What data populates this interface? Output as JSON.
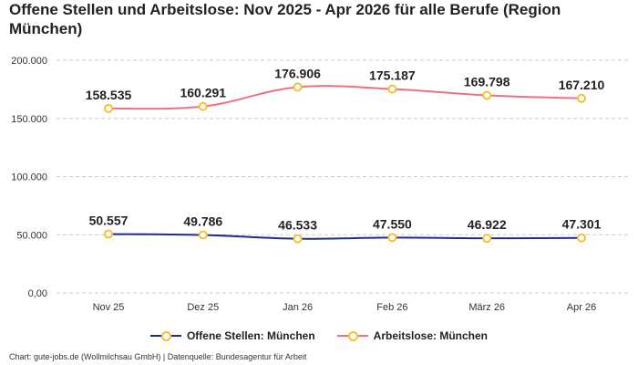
{
  "title": "Offene Stellen und Arbeitslose: Nov 2025 - Apr 2026 für alle Berufe (Region München)",
  "footer": "Chart: gute-jobs.de (Wollmilchsau GmbH) | Datenquelle: Bundesagentur für Arbeit",
  "colors": {
    "offene_stellen": "#1f2d86",
    "arbeitslose": "#f0707f",
    "marker_border": "#f2c232",
    "grid": "#cccccc"
  },
  "chart_data": {
    "type": "line",
    "categories": [
      "Nov 25",
      "Dez 25",
      "Jan 26",
      "Feb 26",
      "März 26",
      "Apr 26"
    ],
    "y_ticks": [
      "0,00",
      "50.000",
      "100.000",
      "150.000",
      "200.000"
    ],
    "ylim": [
      0,
      200000
    ],
    "grid": true,
    "legend_position": "bottom",
    "series": [
      {
        "name": "Offene Stellen: München",
        "values": [
          50557,
          49786,
          46533,
          47550,
          46922,
          47301
        ],
        "labels": [
          "50.557",
          "49.786",
          "46.533",
          "47.550",
          "46.922",
          "47.301"
        ]
      },
      {
        "name": "Arbeitslose: München",
        "values": [
          158535,
          160291,
          176906,
          175187,
          169798,
          167210
        ],
        "labels": [
          "158.535",
          "160.291",
          "176.906",
          "175.187",
          "169.798",
          "167.210"
        ]
      }
    ]
  }
}
